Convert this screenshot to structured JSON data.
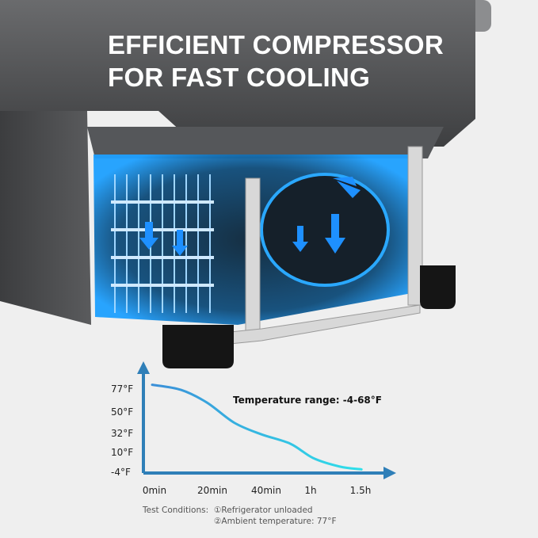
{
  "headline": {
    "line1": "EFFICIENT COMPRESSOR",
    "line2": "FOR FAST COOLING"
  },
  "colors": {
    "background": "#efefef",
    "cooler_body": "#4a4b4d",
    "cooling_blue": "#1a8fe0",
    "axis": "#2f7fb8",
    "curve_start": "#3b8fd8",
    "curve_end": "#2fe0ea"
  },
  "chart_data": {
    "type": "line",
    "annotation": "Temperature range:  -4-68°F",
    "x_ticks": [
      {
        "label": "0min",
        "minutes": 0
      },
      {
        "label": "20min",
        "minutes": 20
      },
      {
        "label": "40min",
        "minutes": 40
      },
      {
        "label": "1h",
        "minutes": 60
      },
      {
        "label": "1.5h",
        "minutes": 90
      }
    ],
    "y_ticks": [
      {
        "label": "77°F",
        "value": 77
      },
      {
        "label": "50°F",
        "value": 50
      },
      {
        "label": "32°F",
        "value": 32
      },
      {
        "label": "10°F",
        "value": 10
      },
      {
        "label": "-4°F",
        "value": -4
      }
    ],
    "series": [
      {
        "x": [
          0,
          10,
          19,
          29,
          39,
          52,
          63,
          79,
          92
        ],
        "y": [
          82,
          76,
          61,
          41,
          31,
          20,
          6,
          0,
          -2
        ]
      }
    ],
    "grid": false,
    "legend": "none"
  },
  "test_conditions": {
    "label": "Test Conditions:",
    "items": [
      "①Refrigerator unloaded",
      "②Ambient temperature: 77°F"
    ]
  }
}
